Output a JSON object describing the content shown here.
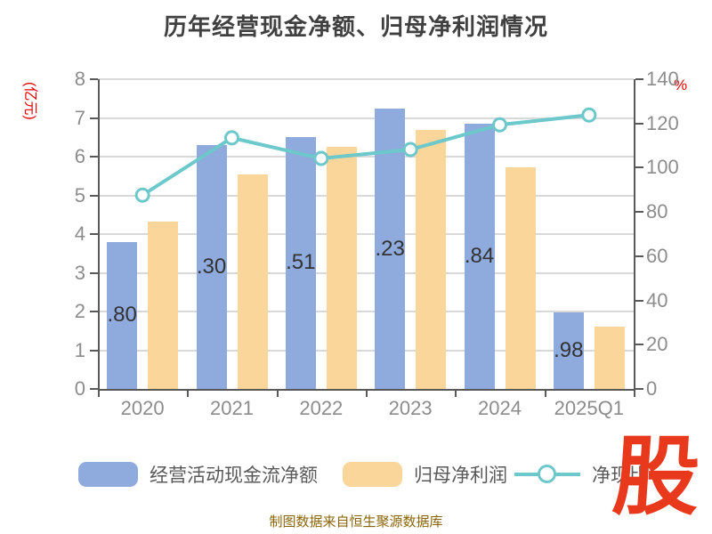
{
  "header": {
    "title": "历年经营现金净额、归母净利润情况"
  },
  "footer": {
    "caption": "制图数据来自恒生聚源数据库"
  },
  "logo": {
    "text": "股",
    "color": "#e8391d"
  },
  "colors": {
    "background": "#ffffff",
    "title_text": "#404040",
    "axis_unit_red": "#e60000",
    "tick_label": "#8c8c8c",
    "axis_line": "#595959",
    "gridline": "#d9d9d9",
    "bar_label": "#333333",
    "legend_text": "#595959",
    "caption_text": "#8a6508",
    "bar_blue": "#8faadc",
    "bar_orange": "#fbd69b",
    "line_teal": "#6cc8cb"
  },
  "chart_data": {
    "type": "bar",
    "title": "历年经营现金净额、归母净利润情况",
    "categories": [
      "2020",
      "2021",
      "2022",
      "2023",
      "2024",
      "2025Q1"
    ],
    "series": [
      {
        "name": "经营活动现金流净额",
        "type": "bar",
        "axis": "left",
        "color": "#8faadc",
        "values": [
          3.8,
          6.3,
          6.51,
          7.23,
          6.84,
          1.98
        ],
        "value_labels": [
          ".80",
          ".30",
          ".51",
          ".23",
          ".84",
          ".98"
        ]
      },
      {
        "name": "归母净利润",
        "type": "bar",
        "axis": "left",
        "color": "#fbd69b",
        "values": [
          4.33,
          5.55,
          6.25,
          6.68,
          5.73,
          1.6
        ]
      },
      {
        "name": "净现比",
        "type": "line",
        "axis": "right",
        "color": "#6cc8cb",
        "marker": "white-circle",
        "values": [
          87.6,
          113.5,
          104.2,
          108.2,
          119.4,
          123.8
        ]
      }
    ],
    "left_axis": {
      "unit": "(亿元)",
      "min": 0,
      "max": 8,
      "step": 1,
      "ticks": [
        0,
        1,
        2,
        3,
        4,
        5,
        6,
        7,
        8
      ]
    },
    "right_axis": {
      "unit": "%",
      "min": 0,
      "max": 140,
      "step": 20,
      "ticks": [
        0,
        20,
        40,
        60,
        80,
        100,
        120,
        140
      ]
    },
    "grid": true,
    "legend_position": "bottom"
  }
}
